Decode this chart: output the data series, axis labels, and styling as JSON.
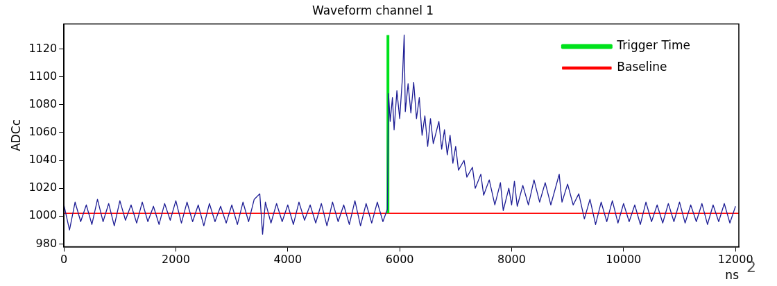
{
  "chart_data": {
    "type": "line",
    "title": "Waveform channel 1",
    "xlabel": "ns",
    "ylabel": "ADCc",
    "xlim": [
      0,
      12060
    ],
    "ylim": [
      978,
      1138
    ],
    "xticks": [
      0,
      2000,
      4000,
      6000,
      8000,
      10000,
      12000
    ],
    "yticks": [
      980,
      1000,
      1020,
      1040,
      1060,
      1080,
      1100,
      1120
    ],
    "grid": false,
    "legend": "top right",
    "marker": "none",
    "line_style": "solid",
    "annotations": [
      "2"
    ],
    "series": [
      {
        "color": "#1c1c94",
        "x": [
          0,
          100,
          200,
          300,
          400,
          500,
          600,
          700,
          800,
          900,
          1000,
          1100,
          1200,
          1300,
          1400,
          1500,
          1600,
          1700,
          1800,
          1900,
          2000,
          2100,
          2200,
          2300,
          2400,
          2500,
          2600,
          2700,
          2800,
          2900,
          3000,
          3100,
          3200,
          3300,
          3400,
          3500,
          3550,
          3600,
          3700,
          3800,
          3900,
          4000,
          4100,
          4200,
          4300,
          4400,
          4500,
          4600,
          4700,
          4800,
          4900,
          5000,
          5100,
          5200,
          5300,
          5400,
          5500,
          5600,
          5700,
          5780,
          5800,
          5830,
          5870,
          5900,
          5950,
          6000,
          6050,
          6080,
          6100,
          6150,
          6200,
          6250,
          6300,
          6350,
          6400,
          6450,
          6500,
          6550,
          6600,
          6700,
          6750,
          6800,
          6850,
          6900,
          6950,
          7000,
          7050,
          7150,
          7200,
          7300,
          7350,
          7450,
          7500,
          7600,
          7700,
          7800,
          7850,
          7950,
          8000,
          8050,
          8100,
          8200,
          8300,
          8400,
          8500,
          8600,
          8700,
          8850,
          8900,
          9000,
          9100,
          9200,
          9300,
          9400,
          9500,
          9600,
          9700,
          9800,
          9900,
          10000,
          10100,
          10200,
          10300,
          10400,
          10500,
          10600,
          10700,
          10800,
          10900,
          11000,
          11100,
          11200,
          11300,
          11400,
          11500,
          11600,
          11700,
          11800,
          11900,
          12000
        ],
        "values": [
          1008,
          990,
          1010,
          996,
          1008,
          994,
          1012,
          996,
          1009,
          993,
          1011,
          997,
          1008,
          995,
          1010,
          996,
          1007,
          994,
          1009,
          997,
          1011,
          995,
          1010,
          996,
          1008,
          993,
          1009,
          996,
          1007,
          995,
          1008,
          994,
          1010,
          996,
          1012,
          1016,
          987,
          1010,
          995,
          1009,
          996,
          1008,
          994,
          1010,
          997,
          1008,
          995,
          1009,
          993,
          1010,
          996,
          1008,
          994,
          1011,
          993,
          1009,
          995,
          1010,
          996,
          1005,
          1088,
          1068,
          1085,
          1062,
          1090,
          1070,
          1100,
          1130,
          1075,
          1095,
          1074,
          1096,
          1070,
          1085,
          1058,
          1072,
          1050,
          1070,
          1052,
          1068,
          1048,
          1062,
          1044,
          1058,
          1038,
          1050,
          1033,
          1040,
          1028,
          1035,
          1020,
          1030,
          1015,
          1026,
          1008,
          1024,
          1004,
          1020,
          1008,
          1025,
          1007,
          1022,
          1008,
          1026,
          1010,
          1024,
          1008,
          1030,
          1010,
          1023,
          1008,
          1016,
          998,
          1012,
          994,
          1010,
          996,
          1011,
          995,
          1009,
          996,
          1008,
          994,
          1010,
          996,
          1008,
          995,
          1009,
          996,
          1010,
          995,
          1008,
          996,
          1009,
          994,
          1008,
          996,
          1009,
          995,
          1007
        ]
      },
      {
        "name": "Trigger Time",
        "color": "#00e21c",
        "x": [
          5790,
          5790
        ],
        "values": [
          1002,
          1130
        ]
      },
      {
        "name": "Baseline",
        "color": "#ff0000",
        "x": [
          0,
          12060
        ],
        "values": [
          1002,
          1002
        ]
      }
    ]
  }
}
